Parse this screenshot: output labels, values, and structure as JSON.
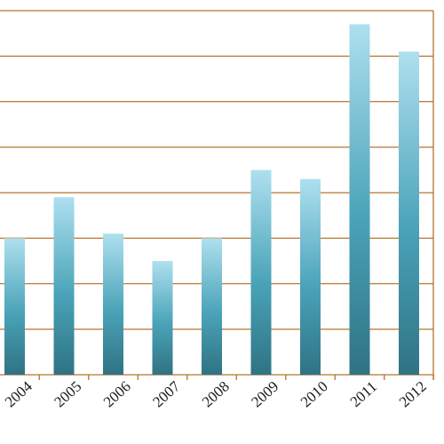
{
  "chart_data": {
    "type": "bar",
    "categories": [
      "2004",
      "2005",
      "2006",
      "2007",
      "2008",
      "2009",
      "2010",
      "2011",
      "2012"
    ],
    "values": [
      3.0,
      3.9,
      3.1,
      2.5,
      3.0,
      4.5,
      4.3,
      7.7,
      7.1
    ],
    "ylim": [
      0,
      8
    ],
    "grid": true,
    "gridlines": [
      0,
      1,
      2,
      3,
      4,
      5,
      6,
      7,
      8
    ],
    "legend": "none",
    "colors": {
      "bar_top": "#aee0ef",
      "bar_mid": "#4aa3b8",
      "bar_bottom": "#2f7384",
      "grid": "#b8742e",
      "axis": "#b8742e"
    }
  }
}
